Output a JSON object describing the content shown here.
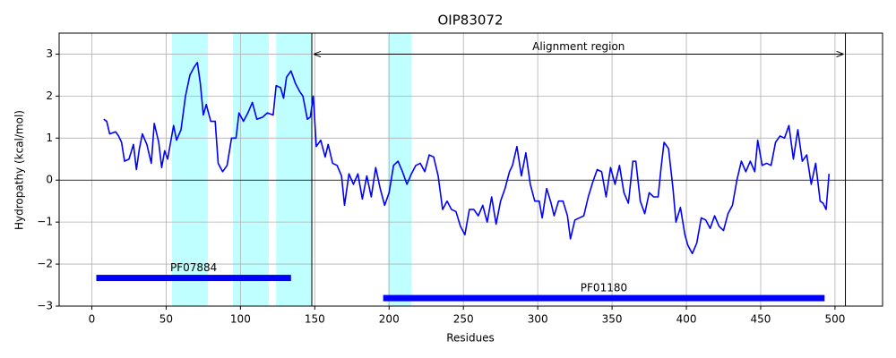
{
  "chart_data": {
    "type": "line",
    "title": "OIP83072",
    "xlabel": "Residues",
    "ylabel": "Hydropathy (kcal/mol)",
    "xlim": [
      -22,
      532
    ],
    "ylim": [
      -3,
      3.5
    ],
    "xticks": [
      0,
      50,
      100,
      150,
      200,
      250,
      300,
      350,
      400,
      450,
      500
    ],
    "yticks": [
      {
        "value": -3,
        "label": "−3"
      },
      {
        "value": -2,
        "label": "−2"
      },
      {
        "value": -1,
        "label": "−1"
      },
      0,
      1,
      2,
      3
    ],
    "grid": true,
    "color": "#0000ff",
    "x": [
      8,
      10,
      12,
      16,
      18,
      20,
      22,
      25,
      28,
      30,
      32,
      34,
      37,
      40,
      42,
      45,
      47,
      49,
      51,
      53,
      55,
      57,
      60,
      63,
      66,
      69,
      71,
      73,
      75,
      77,
      80,
      83,
      85,
      88,
      91,
      94,
      97,
      99,
      102,
      105,
      108,
      111,
      115,
      118,
      122,
      124,
      127,
      129,
      131,
      134,
      137,
      140,
      142,
      145,
      147,
      149,
      151,
      154,
      157,
      159,
      162,
      165,
      168,
      170,
      173,
      176,
      179,
      182,
      185,
      188,
      191,
      194,
      197,
      200,
      203,
      206,
      209,
      212,
      215,
      218,
      221,
      224,
      227,
      230,
      233,
      236,
      239,
      242,
      245,
      248,
      251,
      254,
      257,
      260,
      263,
      266,
      269,
      272,
      275,
      278,
      281,
      283,
      286,
      289,
      292,
      295,
      298,
      301,
      303,
      306,
      309,
      311,
      314,
      317,
      320,
      322,
      325,
      328,
      331,
      334,
      337,
      340,
      343,
      346,
      349,
      352,
      355,
      358,
      361,
      364,
      366,
      369,
      372,
      375,
      378,
      381,
      383,
      385,
      388,
      391,
      393,
      396,
      399,
      401,
      404,
      407,
      410,
      413,
      416,
      419,
      422,
      425,
      428,
      431,
      434,
      437,
      440,
      443,
      446,
      448,
      451,
      454,
      457,
      460,
      463,
      466,
      469,
      472,
      475,
      478,
      481,
      484,
      487,
      490,
      492,
      494,
      496
    ],
    "values": [
      1.45,
      1.4,
      1.1,
      1.15,
      1.05,
      0.9,
      0.45,
      0.5,
      0.85,
      0.25,
      0.75,
      1.1,
      0.85,
      0.4,
      1.35,
      0.9,
      0.3,
      0.7,
      0.5,
      0.9,
      1.3,
      0.95,
      1.2,
      2.0,
      2.5,
      2.7,
      2.8,
      2.3,
      1.55,
      1.8,
      1.4,
      1.4,
      0.4,
      0.2,
      0.35,
      1.0,
      1.0,
      1.6,
      1.4,
      1.6,
      1.85,
      1.45,
      1.5,
      1.6,
      1.55,
      2.25,
      2.2,
      1.95,
      2.45,
      2.6,
      2.3,
      2.1,
      2.0,
      1.45,
      1.5,
      2.0,
      0.8,
      0.95,
      0.55,
      0.85,
      0.4,
      0.35,
      0.1,
      -0.6,
      0.15,
      -0.1,
      0.15,
      -0.45,
      0.1,
      -0.4,
      0.3,
      -0.2,
      -0.6,
      -0.3,
      0.35,
      0.45,
      0.2,
      -0.1,
      0.15,
      0.35,
      0.4,
      0.2,
      0.6,
      0.55,
      0.1,
      -0.7,
      -0.5,
      -0.7,
      -0.75,
      -1.1,
      -1.3,
      -0.7,
      -0.7,
      -0.85,
      -0.6,
      -1.0,
      -0.4,
      -1.05,
      -0.5,
      -0.2,
      0.2,
      0.35,
      0.8,
      0.1,
      0.65,
      -0.1,
      -0.5,
      -0.5,
      -0.9,
      -0.2,
      -0.55,
      -0.85,
      -0.5,
      -0.5,
      -0.85,
      -1.4,
      -0.95,
      -0.9,
      -0.85,
      -0.4,
      -0.05,
      0.25,
      0.2,
      -0.4,
      0.3,
      -0.1,
      0.35,
      -0.3,
      -0.55,
      0.45,
      0.45,
      -0.5,
      -0.8,
      -0.3,
      -0.4,
      -0.4,
      0.3,
      0.9,
      0.75,
      -0.2,
      -1.0,
      -0.65,
      -1.3,
      -1.55,
      -1.75,
      -1.5,
      -0.9,
      -0.95,
      -1.15,
      -0.85,
      -1.1,
      -1.2,
      -0.8,
      -0.6,
      0.0,
      0.45,
      0.2,
      0.45,
      0.2,
      0.95,
      0.35,
      0.4,
      0.35,
      0.9,
      1.05,
      1.0,
      1.3,
      0.5,
      1.2,
      0.45,
      0.6,
      -0.1,
      0.4,
      -0.5,
      -0.55,
      -0.7,
      0.15
    ],
    "hline": 0,
    "shaded_regions": [
      [
        54,
        78
      ],
      [
        95,
        119
      ],
      [
        124,
        148
      ],
      [
        199,
        215
      ]
    ],
    "shade_color": "#c0ffff",
    "vlines": [
      148,
      507
    ],
    "annotation": {
      "text": "Alignment region",
      "x_start": 148,
      "x_end": 507,
      "y": 3
    },
    "domains": [
      {
        "label": "PF07884",
        "start": 3,
        "end": 134,
        "y": -2.33,
        "color": "#0000ff"
      },
      {
        "label": "PF01180",
        "start": 196,
        "end": 493,
        "y": -2.81,
        "color": "#0000ff"
      }
    ]
  }
}
